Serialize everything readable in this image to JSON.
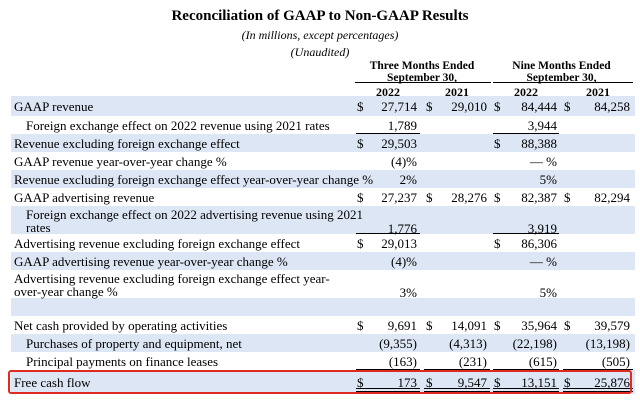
{
  "title": "Reconciliation of GAAP to Non-GAAP Results",
  "subtitle": "(In millions, except percentages)",
  "unaudited": "(Unaudited)",
  "periods": [
    {
      "label": "Three Months Ended",
      "label2": "September 30,",
      "years": [
        "2022",
        "2021"
      ]
    },
    {
      "label": "Nine Months Ended",
      "label2": "September 30,",
      "years": [
        "2022",
        "2021"
      ]
    }
  ],
  "rows": [
    {
      "label": "GAAP revenue",
      "values": [
        "27,714",
        "29,010",
        "84,444",
        "84,258"
      ],
      "dollars": [
        true,
        true,
        true,
        true
      ]
    },
    {
      "label": "Foreign exchange effect on 2022 revenue using 2021 rates",
      "values": [
        "1,789",
        "",
        "3,944",
        ""
      ],
      "dollars": [
        false,
        false,
        false,
        false
      ]
    },
    {
      "label": "Revenue excluding foreign exchange effect",
      "values": [
        "29,503",
        "",
        "88,388",
        ""
      ],
      "dollars": [
        true,
        false,
        true,
        false
      ]
    },
    {
      "label": "GAAP revenue year-over-year change %",
      "values": [
        "(4)%",
        "",
        "— %",
        ""
      ],
      "dollars": [
        false,
        false,
        false,
        false
      ]
    },
    {
      "label": "Revenue excluding foreign exchange effect year-over-year change %",
      "values": [
        "2%",
        "",
        "5%",
        ""
      ],
      "dollars": [
        false,
        false,
        false,
        false
      ]
    },
    {
      "label": "GAAP advertising revenue",
      "values": [
        "27,237",
        "28,276",
        "82,387",
        "82,294"
      ],
      "dollars": [
        true,
        true,
        true,
        true
      ]
    },
    {
      "label": "Foreign exchange effect on 2022 advertising revenue using 2021 rates",
      "values": [
        "1,776",
        "",
        "3,919",
        ""
      ],
      "dollars": [
        false,
        false,
        false,
        false
      ]
    },
    {
      "label": "Advertising revenue excluding foreign exchange effect",
      "values": [
        "29,013",
        "",
        "86,306",
        ""
      ],
      "dollars": [
        true,
        false,
        true,
        false
      ]
    },
    {
      "label": "GAAP advertising revenue year-over-year change %",
      "values": [
        "(4)%",
        "",
        "— %",
        ""
      ],
      "dollars": [
        false,
        false,
        false,
        false
      ]
    },
    {
      "label": "Advertising revenue excluding foreign exchange effect year-over-year change %",
      "values": [
        "3%",
        "",
        "5%",
        ""
      ],
      "dollars": [
        false,
        false,
        false,
        false
      ]
    },
    {
      "label": "Net cash provided by operating activities",
      "values": [
        "9,691",
        "14,091",
        "35,964",
        "39,579"
      ],
      "dollars": [
        true,
        true,
        true,
        true
      ]
    },
    {
      "label": "Purchases of property and equipment, net",
      "values": [
        "(9,355)",
        "(4,313)",
        "(22,198)",
        "(13,198)"
      ],
      "dollars": [
        false,
        false,
        false,
        false
      ]
    },
    {
      "label": "Principal payments on finance leases",
      "values": [
        "(163)",
        "(231)",
        "(615)",
        "(505)"
      ],
      "dollars": [
        false,
        false,
        false,
        false
      ]
    },
    {
      "label": "Free cash flow",
      "values": [
        "173",
        "9,547",
        "13,151",
        "25,876"
      ],
      "dollars": [
        true,
        true,
        true,
        true
      ]
    }
  ],
  "currency_symbol": "$",
  "colors": {
    "shade": "#dde6f4",
    "highlight_border": "#e02a20"
  }
}
